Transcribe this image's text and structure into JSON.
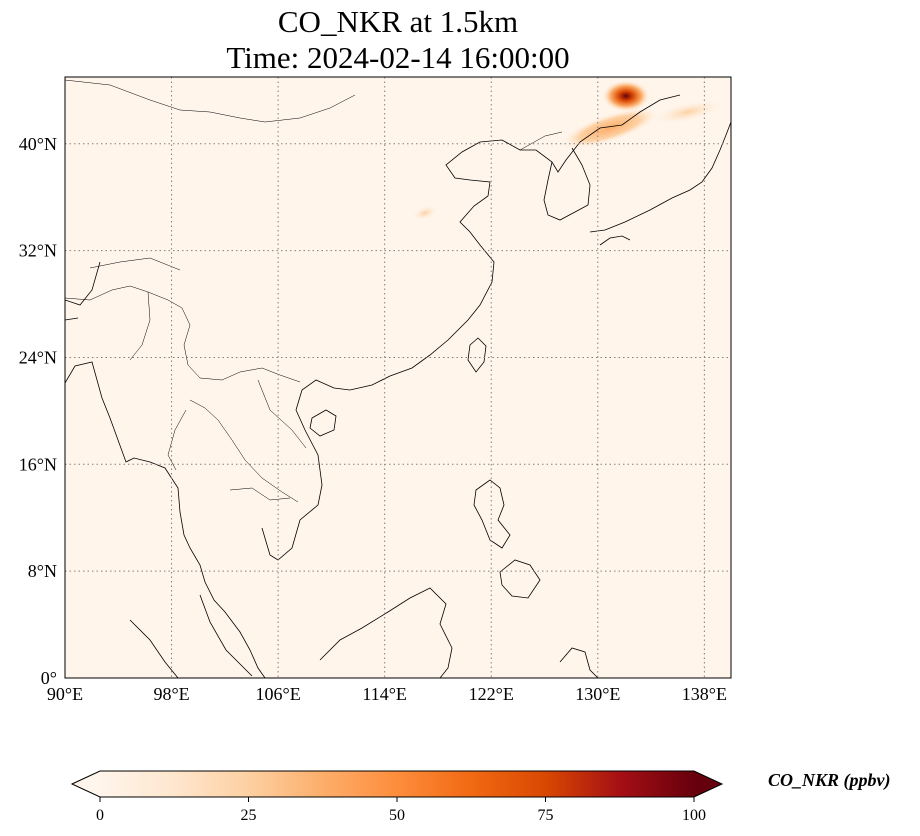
{
  "title": {
    "line1": "CO_NKR at 1.5km",
    "line2": "Time: 2024-02-14 16:00:00"
  },
  "map": {
    "projection": "PlateCarree",
    "lon_range": [
      90,
      140
    ],
    "lat_range": [
      0,
      45
    ],
    "gridlines": "dotted",
    "lon_ticks": [
      {
        "value": 90,
        "label": "90°E"
      },
      {
        "value": 98,
        "label": "98°E"
      },
      {
        "value": 106,
        "label": "106°E"
      },
      {
        "value": 114,
        "label": "114°E"
      },
      {
        "value": 122,
        "label": "122°E"
      },
      {
        "value": 130,
        "label": "130°E"
      },
      {
        "value": 138,
        "label": "138°E"
      }
    ],
    "lat_ticks": [
      {
        "value": 0,
        "label": "0°"
      },
      {
        "value": 8,
        "label": "8°N"
      },
      {
        "value": 16,
        "label": "16°N"
      },
      {
        "value": 24,
        "label": "24°N"
      },
      {
        "value": 32,
        "label": "32°N"
      },
      {
        "value": 40,
        "label": "40°N"
      }
    ],
    "background_color": "#fff5eb",
    "coastline_color": "#000000",
    "high_concentration_plumes": [
      {
        "region": "northeast-china-korea",
        "lon": [
          127,
          136
        ],
        "lat": [
          39.5,
          45
        ],
        "peak_ppbv": 100
      },
      {
        "region": "yellow-sea-west",
        "lon": [
          116,
          118
        ],
        "lat": [
          34,
          35.5
        ],
        "peak_ppbv": 20
      }
    ]
  },
  "colorbar": {
    "label": "CO_NKR (ppbv)",
    "colormap": "OrRd",
    "min": 0,
    "max": 100,
    "extend": "both",
    "ticks": [
      {
        "value": 0,
        "label": "0"
      },
      {
        "value": 25,
        "label": "25"
      },
      {
        "value": 50,
        "label": "50"
      },
      {
        "value": 75,
        "label": "75"
      },
      {
        "value": 100,
        "label": "100"
      }
    ],
    "stops": [
      "#fff5eb",
      "#fee6ce",
      "#fdd0a2",
      "#fdae6b",
      "#fd8d3c",
      "#f16913",
      "#d94801",
      "#a50f15",
      "#67000d"
    ]
  }
}
